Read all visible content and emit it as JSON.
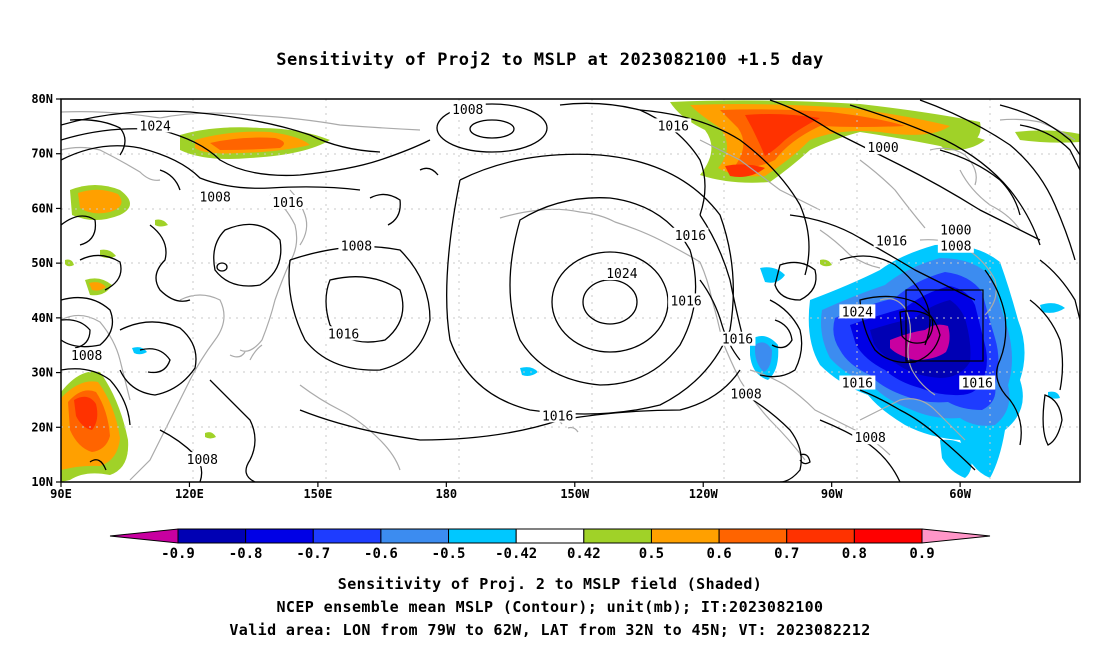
{
  "title": "Sensitivity of Proj2 to MSLP at 2023082100 +1.5 day",
  "lat_axis": [
    "80N",
    "70N",
    "60N",
    "50N",
    "40N",
    "30N",
    "20N",
    "10N"
  ],
  "lon_axis": [
    "90E",
    "120E",
    "150E",
    "180",
    "150W",
    "120W",
    "90W",
    "60W"
  ],
  "contour_labels": [
    {
      "text": "1008",
      "lon": 185,
      "lat": 78
    },
    {
      "text": "1024",
      "lon": 112,
      "lat": 75
    },
    {
      "text": "1016",
      "lon": 233,
      "lat": 75
    },
    {
      "text": "1000",
      "lon": 282,
      "lat": 71
    },
    {
      "text": "1008",
      "lon": 126,
      "lat": 62
    },
    {
      "text": "1016",
      "lon": 143,
      "lat": 61
    },
    {
      "text": "1008",
      "lon": 159,
      "lat": 53
    },
    {
      "text": "1016",
      "lon": 237,
      "lat": 55
    },
    {
      "text": "1016",
      "lon": 284,
      "lat": 54
    },
    {
      "text": "1000",
      "lon": 299,
      "lat": 56
    },
    {
      "text": "1008",
      "lon": 299,
      "lat": 53
    },
    {
      "text": "1024",
      "lon": 221,
      "lat": 48
    },
    {
      "text": "1016",
      "lon": 236,
      "lat": 43
    },
    {
      "text": "1024",
      "lon": 276,
      "lat": 41
    },
    {
      "text": "1016",
      "lon": 156,
      "lat": 37
    },
    {
      "text": "1016",
      "lon": 248,
      "lat": 36
    },
    {
      "text": "1008",
      "lon": 96,
      "lat": 33
    },
    {
      "text": "1008",
      "lon": 250,
      "lat": 26
    },
    {
      "text": "1016",
      "lon": 276,
      "lat": 28
    },
    {
      "text": "1016",
      "lon": 304,
      "lat": 28
    },
    {
      "text": "1016",
      "lon": 206,
      "lat": 22
    },
    {
      "text": "1008",
      "lon": 279,
      "lat": 18
    },
    {
      "text": "1008",
      "lon": 123,
      "lat": 14
    }
  ],
  "colorbar": {
    "labels": [
      "-0.9",
      "-0.8",
      "-0.7",
      "-0.6",
      "-0.5",
      "-0.42",
      "0.42",
      "0.5",
      "0.6",
      "0.7",
      "0.8",
      "0.9"
    ],
    "colors": [
      "#c800a0",
      "#0000b4",
      "#0000e6",
      "#1e3cff",
      "#3c8cf0",
      "#00c8ff",
      "#ffffff",
      "#a0d228",
      "#ffa000",
      "#ff6400",
      "#ff3200",
      "#ff0000",
      "#ff96c8"
    ]
  },
  "caption_line1": "Sensitivity of Proj. 2 to MSLP field (Shaded)",
  "caption_line2": "NCEP ensemble mean MSLP (Contour); unit(mb); IT:2023082100",
  "caption_line3": "Valid area: LON from 79W to 62W, LAT from 32N to 45N; VT: 2023082212"
}
